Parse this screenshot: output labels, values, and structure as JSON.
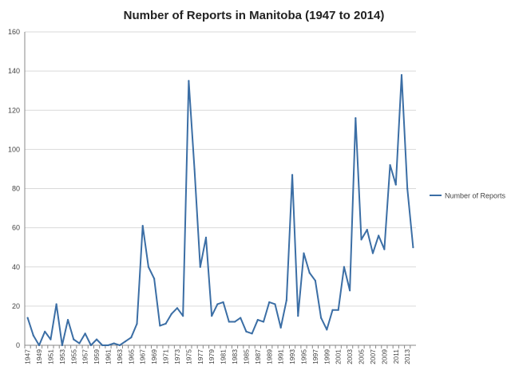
{
  "chart_data": {
    "type": "line",
    "title": "Number of Reports in Manitoba (1947 to 2014)",
    "xlabel": "",
    "ylabel": "",
    "ylim": [
      0,
      160
    ],
    "yticks": [
      0,
      20,
      40,
      60,
      80,
      100,
      120,
      140,
      160
    ],
    "grid": "horizontal",
    "legend_position": "right",
    "x": [
      1947,
      1948,
      1949,
      1950,
      1951,
      1952,
      1953,
      1954,
      1955,
      1956,
      1957,
      1958,
      1959,
      1960,
      1961,
      1962,
      1963,
      1964,
      1965,
      1966,
      1967,
      1968,
      1969,
      1970,
      1971,
      1972,
      1973,
      1974,
      1975,
      1976,
      1977,
      1978,
      1979,
      1980,
      1981,
      1982,
      1983,
      1984,
      1985,
      1986,
      1987,
      1988,
      1989,
      1990,
      1991,
      1992,
      1993,
      1994,
      1995,
      1996,
      1997,
      1998,
      1999,
      2000,
      2001,
      2002,
      2003,
      2004,
      2005,
      2006,
      2007,
      2008,
      2009,
      2010,
      2011,
      2012,
      2013,
      2014
    ],
    "xtick_labels": [
      "1947",
      "1949",
      "1951",
      "1953",
      "1955",
      "1957",
      "1959",
      "1961",
      "1963",
      "1965",
      "1967",
      "1969",
      "1971",
      "1973",
      "1975",
      "1977",
      "1979",
      "1981",
      "1983",
      "1985",
      "1987",
      "1989",
      "1991",
      "1993",
      "1995",
      "1997",
      "1999",
      "2001",
      "2003",
      "2005",
      "2007",
      "2009",
      "2011",
      "2013"
    ],
    "series": [
      {
        "name": "Number of Reports",
        "color": "#3b6ea5",
        "values": [
          14,
          5,
          0,
          7,
          3,
          21,
          0,
          13,
          3,
          1,
          6,
          0,
          3,
          0,
          0,
          1,
          0,
          2,
          4,
          11,
          61,
          40,
          34,
          10,
          11,
          16,
          19,
          15,
          135,
          90,
          40,
          55,
          15,
          21,
          22,
          12,
          12,
          14,
          7,
          6,
          13,
          12,
          22,
          21,
          9,
          23,
          87,
          15,
          47,
          37,
          33,
          14,
          8,
          18,
          18,
          40,
          28,
          116,
          54,
          59,
          47,
          56,
          49,
          92,
          82,
          138,
          80,
          50
        ]
      }
    ]
  }
}
